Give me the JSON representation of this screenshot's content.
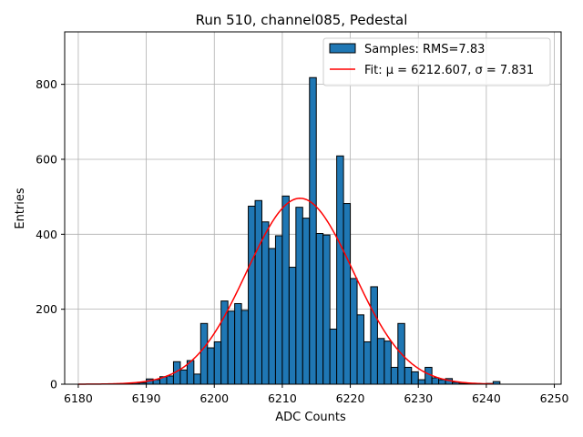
{
  "chart_data": {
    "type": "bar",
    "title": "Run 510, channel085, Pedestal",
    "xlabel": "ADC Counts",
    "ylabel": "Entries",
    "xlim": [
      6178,
      6251
    ],
    "ylim": [
      0,
      940
    ],
    "xticks": [
      6180,
      6190,
      6200,
      6210,
      6220,
      6230,
      6240,
      6250
    ],
    "yticks": [
      0,
      200,
      400,
      600,
      800
    ],
    "grid": true,
    "legend_position": "top-right",
    "bin_width": 1,
    "histogram": {
      "name": "Samples: RMS=7.83",
      "color": "#1f77b4",
      "edge_color": "#000000",
      "bins": [
        6185,
        6186,
        6187,
        6188,
        6189,
        6190,
        6191,
        6192,
        6193,
        6194,
        6195,
        6196,
        6197,
        6198,
        6199,
        6200,
        6201,
        6202,
        6203,
        6204,
        6205,
        6206,
        6207,
        6208,
        6209,
        6210,
        6211,
        6212,
        6213,
        6214,
        6215,
        6216,
        6217,
        6218,
        6219,
        6220,
        6221,
        6222,
        6223,
        6224,
        6225,
        6226,
        6227,
        6228,
        6229,
        6230,
        6231,
        6232,
        6233,
        6234,
        6235,
        6236,
        6237,
        6238,
        6239,
        6240,
        6241
      ],
      "counts": [
        1,
        1,
        2,
        3,
        4,
        14,
        12,
        20,
        22,
        60,
        38,
        63,
        27,
        162,
        97,
        113,
        222,
        195,
        215,
        197,
        475,
        490,
        433,
        362,
        396,
        502,
        312,
        472,
        443,
        818,
        402,
        398,
        147,
        609,
        482,
        282,
        185,
        113,
        260,
        122,
        115,
        45,
        162,
        45,
        33,
        12,
        45,
        17,
        12,
        15,
        5,
        2,
        2,
        1,
        1,
        2,
        7
      ]
    },
    "fit": {
      "name": "Fit: μ = 6212.607, σ = 7.831",
      "mu": 6212.607,
      "sigma": 7.831,
      "amplitude": 496,
      "range": [
        6180,
        6241
      ],
      "color": "#ff0000"
    }
  }
}
